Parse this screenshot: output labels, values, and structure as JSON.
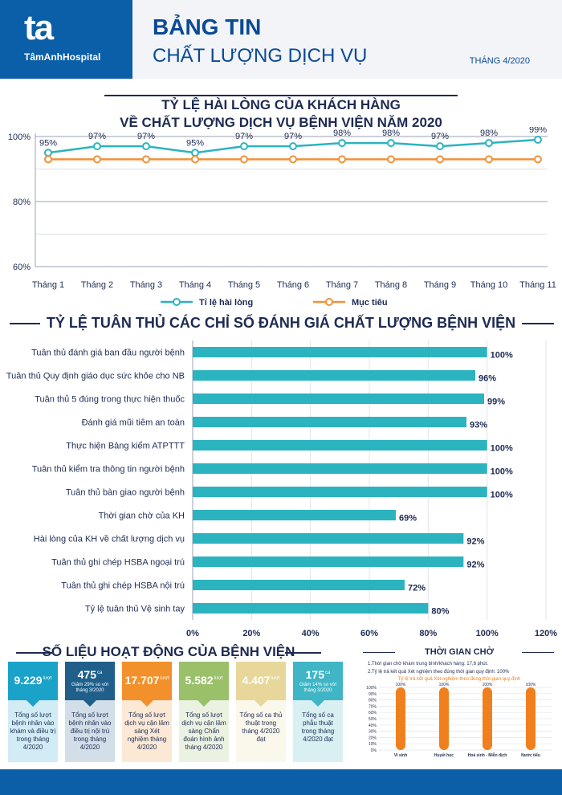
{
  "header": {
    "logo_mark": "ta",
    "logo_name": "TâmAnhHospital",
    "title_line1": "BẢNG TIN",
    "title_line2": "CHẤT LƯỢNG DỊCH VỤ",
    "month": "THÁNG 4/2020",
    "brand_color": "#0b5ea8"
  },
  "satisfaction": {
    "title_line1": "TỶ LỆ HÀI LÒNG CỦA KHÁCH HÀNG",
    "title_line2": "VỀ CHẤT LƯỢNG DỊCH VỤ BỆNH VIỆN NĂM 2020"
  },
  "ops": {
    "title": "SỐ LIỆU HOẠT ĐỘNG CỦA BỆNH VIỆN",
    "cards": [
      {
        "value": "9.229",
        "unit": "lượt",
        "sub": "",
        "text": "Tổng số lượt bệnh nhân vào khám và điều trị trong tháng 4/2020",
        "color": "#1aa2c9"
      },
      {
        "value": "475",
        "unit": "ca",
        "sub": "Giảm 29% so với tháng 3/2020",
        "text": "Tổng số lượt bệnh nhân vào điều trị nội trú trong tháng 4/2020",
        "color": "#1f5f8a"
      },
      {
        "value": "17.707",
        "unit": "lượt",
        "sub": "",
        "text": "Tổng số lượt dịch vụ cận lâm sàng Xét nghiệm tháng 4/2020",
        "color": "#f2912b"
      },
      {
        "value": "5.582",
        "unit": "lượt",
        "sub": "",
        "text": "Tổng số lượt dịch vụ cận lâm sàng Chẩn đoán hình ảnh tháng 4/2020",
        "color": "#9ac06a"
      },
      {
        "value": "4.407",
        "unit": "lượt",
        "sub": "",
        "text": "Tổng số ca thủ thuật trong tháng 4/2020 đạt",
        "color": "#e8d79a"
      },
      {
        "value": "175",
        "unit": "ca",
        "sub": "Giảm 14% so với tháng 3/2020",
        "text": "Tổng số ca phẫu thuật trong tháng 4/2020 đạt",
        "color": "#3fb5c5"
      }
    ]
  },
  "wait": {
    "title": "THỜI GIAN CHỜ",
    "note1": "1.Thời gian chờ khám trung bình/khách hàng: 17,8 phút.",
    "note2": "2.Tỷ lệ trả kết quả Xét nghiệm theo đúng thời gian quy định: 100%"
  },
  "chart_data": [
    {
      "type": "line",
      "categories": [
        "Tháng 1",
        "Tháng 2",
        "Tháng 3",
        "Tháng 4",
        "Tháng 5",
        "Tháng 6",
        "Tháng 7",
        "Tháng 8",
        "Tháng 9",
        "Tháng 10",
        "Tháng 11"
      ],
      "series": [
        {
          "name": "Tỉ lệ hài lòng",
          "values": [
            95,
            97,
            97,
            95,
            97,
            97,
            98,
            98,
            97,
            98,
            99
          ],
          "labels": [
            "95%",
            "97%",
            "97%",
            "95%",
            "97%",
            "97%",
            "98%",
            "98%",
            "97%",
            "98%",
            "99%"
          ],
          "color": "#2bb3c0"
        },
        {
          "name": "Mục tiêu",
          "values": [
            93,
            93,
            93,
            93,
            93,
            93,
            93,
            93,
            93,
            93,
            93
          ],
          "color": "#f0913a"
        }
      ],
      "yticks": [
        "60%",
        "80%",
        "100%"
      ],
      "ylim": [
        60,
        100
      ],
      "legend": "bottom"
    },
    {
      "type": "bar",
      "orientation": "horizontal",
      "title": "TỶ LỆ TUÂN THỦ CÁC CHỈ SỐ ĐÁNH GIÁ CHẤT LƯỢNG BỆNH VIỆN",
      "categories": [
        "Tuân thủ đánh giá ban đầu người bệnh",
        "Tuân thủ Quy định giáo dục sức khỏe cho NB",
        "Tuân thủ 5 đúng trong thực hiện  thuốc",
        "Đánh giá mũi tiêm an toàn",
        "Thực hiện Bảng kiểm ATPTTT",
        "Tuân thủ kiểm tra thông tin người bệnh",
        "Tuân thủ bàn giao người bệnh",
        "Thời gian chờ của KH",
        "Hài lòng của KH về chất lượng dịch vụ",
        "Tuân thủ ghi chép HSBA ngoại trú",
        "Tuân thủ ghi chép HSBA nội trú",
        "Tỷ lệ tuân thủ Vệ sinh tay"
      ],
      "values": [
        100,
        96,
        99,
        93,
        100,
        100,
        100,
        69,
        92,
        92,
        72,
        80
      ],
      "labels": [
        "100%",
        "96%",
        "99%",
        "93%",
        "100%",
        "100%",
        "100%",
        "69%",
        "92%",
        "92%",
        "72%",
        "80%"
      ],
      "xticks": [
        "0%",
        "20%",
        "40%",
        "60%",
        "80%",
        "100%",
        "120%"
      ],
      "xlim": [
        0,
        120
      ],
      "color": "#2bb3c0"
    },
    {
      "type": "bar",
      "title": "Tỷ lệ trả kết quả Xét nghiệm theo đúng thời gian quy định",
      "categories": [
        "Vi sinh",
        "Huyết học",
        "Hoá sinh - Miễn dịch",
        "Nước tiểu"
      ],
      "values": [
        100,
        100,
        100,
        100
      ],
      "labels": [
        "100%",
        "100%",
        "100%",
        "100%"
      ],
      "yticks": [
        "0%",
        "10%",
        "20%",
        "30%",
        "40%",
        "50%",
        "60%",
        "70%",
        "80%",
        "90%",
        "100%"
      ],
      "ylim": [
        0,
        100
      ],
      "color": "#f0801e"
    }
  ]
}
